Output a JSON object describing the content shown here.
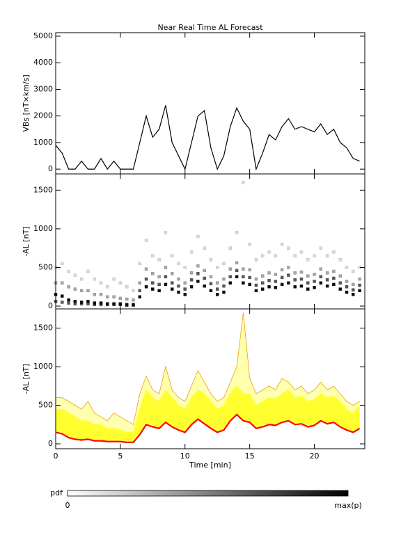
{
  "chart_data": [
    {
      "type": "line",
      "title": "Near Real Time AL Forecast",
      "ylabel": "VBs [nT×km/s]",
      "color": "#000000",
      "xlim": [
        0,
        23.9
      ],
      "xticks": [
        0,
        5,
        10,
        15,
        20
      ],
      "ylim": [
        -180,
        5130
      ],
      "yticks": [
        0,
        1000,
        2000,
        3000,
        4000,
        5000
      ],
      "x": [
        0,
        0.5,
        1,
        1.5,
        2,
        2.5,
        3,
        3.5,
        4,
        4.5,
        5,
        5.5,
        6,
        6.5,
        7,
        7.5,
        8,
        8.5,
        9,
        9.5,
        10,
        10.5,
        11,
        11.5,
        12,
        12.5,
        13,
        13.5,
        14,
        14.5,
        15,
        15.5,
        16,
        16.5,
        17,
        17.5,
        18,
        18.5,
        19,
        19.5,
        20,
        20.5,
        21,
        21.5,
        22,
        22.5,
        23,
        23.5
      ],
      "values": [
        900,
        600,
        0,
        0,
        300,
        0,
        0,
        400,
        0,
        300,
        0,
        0,
        0,
        1000,
        2000,
        1200,
        1500,
        2400,
        1000,
        500,
        0,
        1000,
        2000,
        2200,
        800,
        0,
        500,
        1600,
        2300,
        1800,
        1500,
        0,
        600,
        1300,
        1100,
        1600,
        1900,
        1500,
        1600,
        1500,
        1400,
        1700,
        1300,
        1500,
        1000,
        800,
        400,
        300
      ]
    },
    {
      "type": "density",
      "ylabel": "-AL [nT]",
      "colorbar_label": "pdf",
      "colorbar_ticks": [
        "0",
        "max(p)"
      ],
      "xlim": [
        0,
        23.9
      ],
      "xticks": [
        0,
        5,
        10,
        15,
        20
      ],
      "ylim": [
        -36,
        1710
      ],
      "yticks": [
        0,
        500,
        1000,
        1500
      ],
      "x": [
        0,
        0.5,
        1,
        1.5,
        2,
        2.5,
        3,
        3.5,
        4,
        4.5,
        5,
        5.5,
        6,
        6.5,
        7,
        7.5,
        8,
        8.5,
        9,
        9.5,
        10,
        10.5,
        11,
        11.5,
        12,
        12.5,
        13,
        13.5,
        14,
        14.5,
        15,
        15.5,
        16,
        16.5,
        17,
        17.5,
        18,
        18.5,
        19,
        19.5,
        20,
        20.5,
        21,
        21.5,
        22,
        22.5,
        23,
        23.5
      ],
      "series": [
        {
          "p": 0.15,
          "values": [
            500,
            550,
            450,
            400,
            350,
            450,
            350,
            300,
            250,
            350,
            300,
            250,
            200,
            550,
            850,
            650,
            600,
            950,
            650,
            550,
            500,
            700,
            900,
            750,
            600,
            500,
            550,
            750,
            950,
            1600,
            800,
            600,
            650,
            700,
            650,
            800,
            750,
            650,
            700,
            600,
            650,
            750,
            650,
            700,
            600,
            500,
            450,
            500
          ]
        },
        {
          "p": 0.35,
          "values": [
            300,
            300,
            250,
            220,
            200,
            200,
            150,
            150,
            120,
            120,
            100,
            90,
            80,
            300,
            480,
            420,
            380,
            500,
            420,
            350,
            300,
            430,
            520,
            460,
            380,
            300,
            350,
            480,
            560,
            480,
            470,
            350,
            390,
            430,
            410,
            470,
            500,
            430,
            440,
            390,
            410,
            480,
            430,
            450,
            390,
            320,
            280,
            350
          ]
        },
        {
          "p": 0.65,
          "values": [
            60,
            50,
            40,
            30,
            30,
            30,
            20,
            20,
            20,
            20,
            20,
            10,
            10,
            200,
            350,
            300,
            280,
            380,
            300,
            260,
            220,
            340,
            420,
            360,
            290,
            220,
            260,
            380,
            460,
            380,
            370,
            270,
            300,
            330,
            320,
            370,
            400,
            340,
            350,
            300,
            320,
            380,
            340,
            360,
            300,
            250,
            210,
            270
          ]
        },
        {
          "p": 0.95,
          "values": [
            150,
            130,
            80,
            60,
            50,
            60,
            40,
            40,
            30,
            30,
            30,
            20,
            20,
            120,
            250,
            220,
            200,
            280,
            220,
            180,
            150,
            250,
            320,
            260,
            200,
            150,
            180,
            300,
            380,
            300,
            280,
            200,
            220,
            250,
            240,
            280,
            300,
            250,
            260,
            220,
            240,
            300,
            260,
            280,
            220,
            180,
            150,
            200
          ]
        }
      ]
    },
    {
      "type": "band",
      "ylabel": "-AL [nT]",
      "xlabel": "Time [min]",
      "xticklabels": true,
      "xlim": [
        0,
        23.9
      ],
      "xticks": [
        0,
        5,
        10,
        15,
        20
      ],
      "ylim": [
        -63,
        1750
      ],
      "yticks": [
        0,
        500,
        1000,
        1500
      ],
      "x": [
        0,
        0.5,
        1,
        1.5,
        2,
        2.5,
        3,
        3.5,
        4,
        4.5,
        5,
        5.5,
        6,
        6.5,
        7,
        7.5,
        8,
        8.5,
        9,
        9.5,
        10,
        10.5,
        11,
        11.5,
        12,
        12.5,
        13,
        13.5,
        14,
        14.5,
        15,
        15.5,
        16,
        16.5,
        17,
        17.5,
        18,
        18.5,
        19,
        19.5,
        20,
        20.5,
        21,
        21.5,
        22,
        22.5,
        23,
        23.5
      ],
      "series": [
        {
          "color": "#ffffb0",
          "stroke": "#f0a000",
          "values": [
            600,
            600,
            550,
            500,
            450,
            550,
            400,
            350,
            300,
            400,
            350,
            300,
            250,
            650,
            880,
            700,
            650,
            1000,
            700,
            600,
            550,
            750,
            950,
            800,
            650,
            550,
            600,
            800,
            1000,
            1700,
            850,
            650,
            700,
            750,
            700,
            850,
            800,
            700,
            750,
            650,
            700,
            800,
            700,
            750,
            650,
            550,
            500,
            550
          ]
        },
        {
          "color": "#ffff30",
          "stroke": "#ffff30",
          "values": [
            450,
            450,
            400,
            350,
            300,
            300,
            250,
            250,
            200,
            200,
            180,
            150,
            150,
            450,
            700,
            600,
            550,
            700,
            600,
            500,
            450,
            600,
            700,
            650,
            550,
            450,
            500,
            650,
            750,
            650,
            650,
            500,
            550,
            600,
            580,
            650,
            700,
            600,
            620,
            550,
            580,
            650,
            600,
            620,
            550,
            450,
            400,
            500
          ]
        },
        {
          "color": "#ffffff",
          "stroke": "#ff0000",
          "values": [
            150,
            130,
            80,
            60,
            50,
            60,
            40,
            40,
            30,
            30,
            30,
            20,
            20,
            120,
            250,
            220,
            200,
            280,
            220,
            180,
            150,
            250,
            320,
            260,
            200,
            150,
            180,
            300,
            380,
            300,
            280,
            200,
            220,
            250,
            240,
            280,
            300,
            250,
            260,
            220,
            240,
            300,
            260,
            280,
            220,
            180,
            150,
            200
          ]
        }
      ]
    }
  ]
}
